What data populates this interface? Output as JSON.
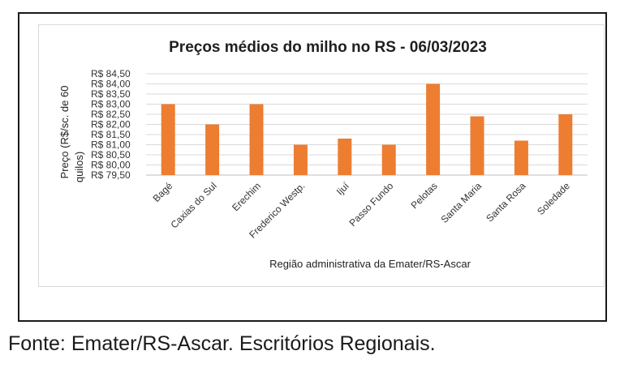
{
  "chart_data": {
    "type": "bar",
    "title": "Preços médios do milho no RS - 06/03/2023",
    "xlabel": "Região administrativa da Emater/RS-Ascar",
    "ylabel_line1": "Preço (R$/sc. de 60",
    "ylabel_line2": "quilos)",
    "ylim": [
      79.5,
      84.5
    ],
    "yticks": [
      "R$ 79,50",
      "R$ 80,00",
      "R$ 80,50",
      "R$ 81,00",
      "R$ 81,50",
      "R$ 82,00",
      "R$ 82,50",
      "R$ 83,00",
      "R$ 83,50",
      "R$ 84,00",
      "R$ 84,50"
    ],
    "ytick_values": [
      79.5,
      80.0,
      80.5,
      81.0,
      81.5,
      82.0,
      82.5,
      83.0,
      83.5,
      84.0,
      84.5
    ],
    "categories": [
      "Bagé",
      "Caxias do Sul",
      "Erechim",
      "Frederico Westp.",
      "Ijuí",
      "Passo Fundo",
      "Pelotas",
      "Santa Maria",
      "Santa Rosa",
      "Soledade"
    ],
    "values": [
      83.0,
      82.0,
      83.0,
      81.0,
      81.3,
      81.0,
      84.0,
      82.4,
      81.2,
      82.5
    ],
    "bar_color": "#ED7D31",
    "grid": true
  },
  "source_note": "Fonte: Emater/RS-Ascar. Escritórios Regionais."
}
